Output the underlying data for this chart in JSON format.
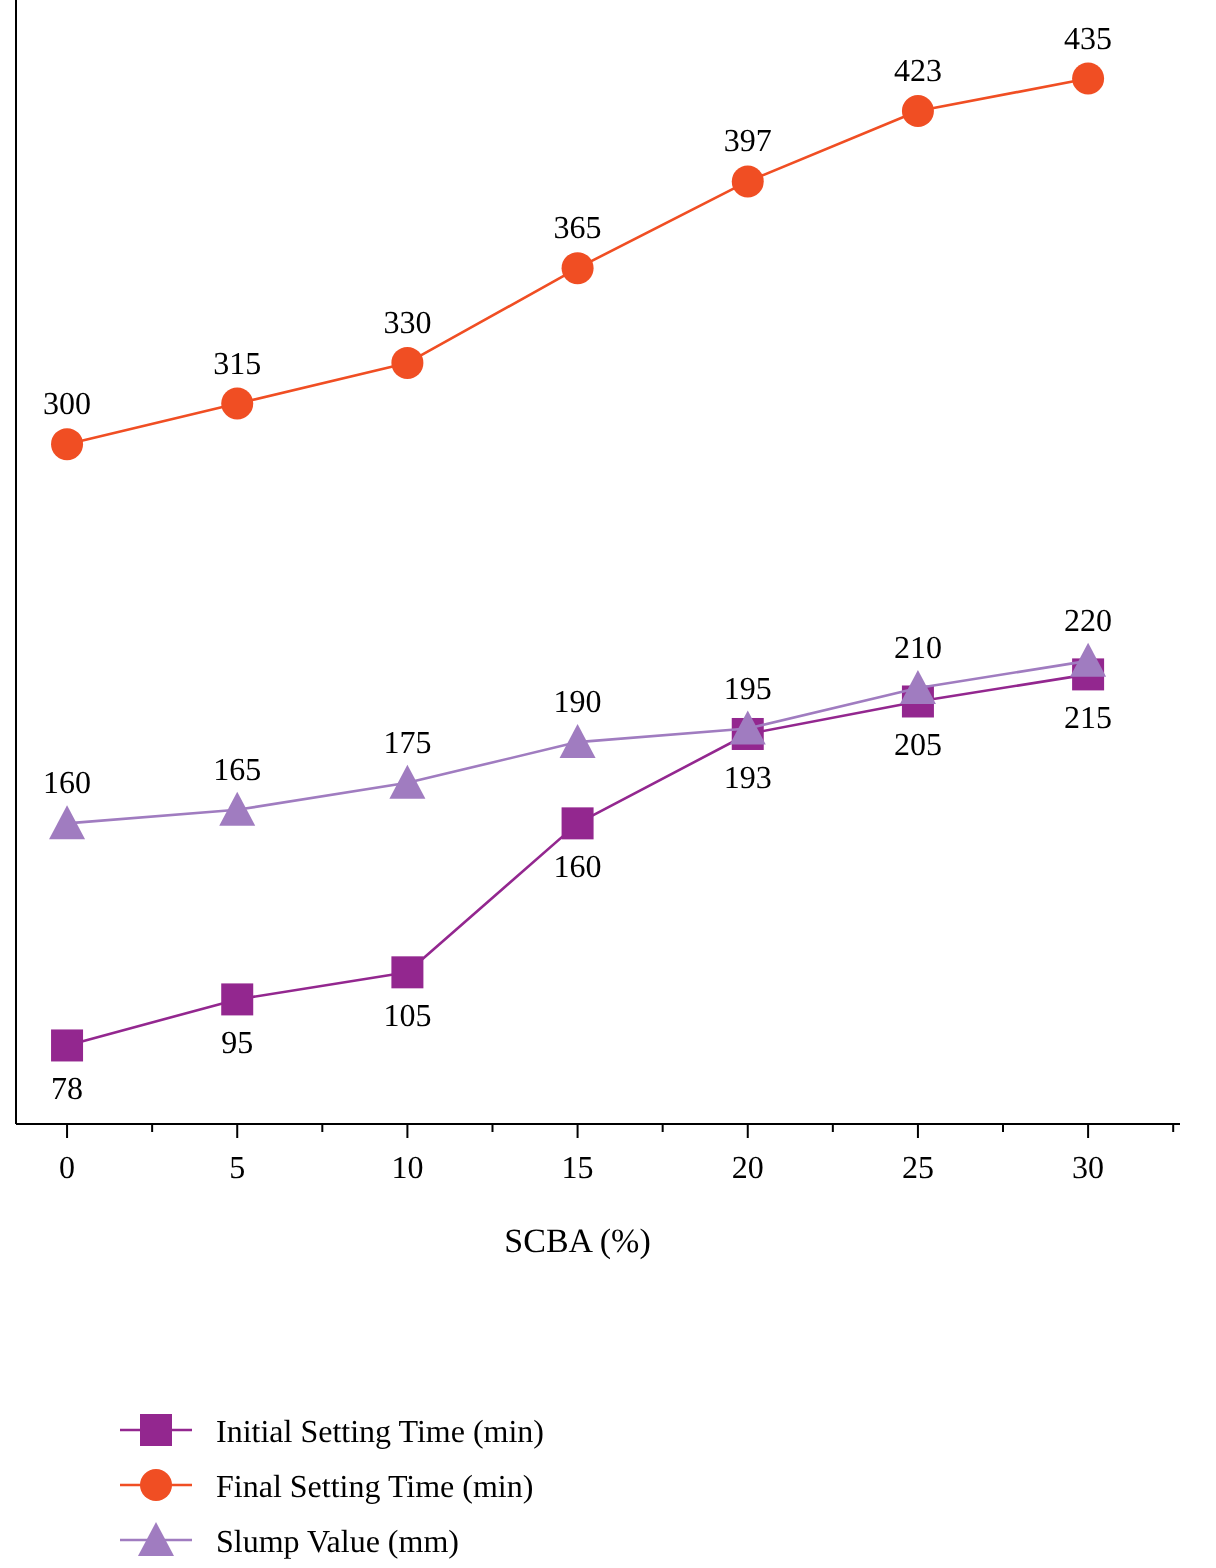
{
  "chart_data": {
    "type": "line",
    "xlabel": "SCBA (%)",
    "x": [
      0,
      5,
      10,
      15,
      20,
      25,
      30
    ],
    "xlim": [
      -1.5,
      32.7
    ],
    "xticks": [
      0,
      5,
      10,
      15,
      20,
      25,
      30
    ],
    "ylim": [
      49,
      464
    ],
    "tick_labels": "x",
    "data_labels": true,
    "legend": "bottom left",
    "grid": false,
    "line_style": "solid",
    "series": [
      {
        "name": "Initial Setting Time (min)",
        "color": "#93278f",
        "marker": "square",
        "values": [
          78,
          95,
          105,
          160,
          193,
          205,
          215
        ]
      },
      {
        "name": "Final Setting Time (min)",
        "color": "#f04e23",
        "marker": "circle",
        "values": [
          300,
          315,
          330,
          365,
          397,
          423,
          435
        ]
      },
      {
        "name": "Slump Value (mm)",
        "color": "#a07cc0",
        "marker": "triangle",
        "values": [
          160,
          165,
          175,
          190,
          195,
          210,
          220
        ]
      }
    ]
  }
}
